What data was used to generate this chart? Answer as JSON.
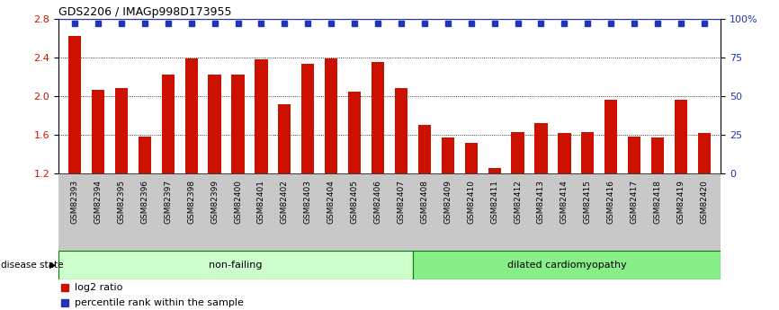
{
  "title": "GDS2206 / IMAGp998D173955",
  "samples": [
    "GSM82393",
    "GSM82394",
    "GSM82395",
    "GSM82396",
    "GSM82397",
    "GSM82398",
    "GSM82399",
    "GSM82400",
    "GSM82401",
    "GSM82402",
    "GSM82403",
    "GSM82404",
    "GSM82405",
    "GSM82406",
    "GSM82407",
    "GSM82408",
    "GSM82409",
    "GSM82410",
    "GSM82411",
    "GSM82412",
    "GSM82413",
    "GSM82414",
    "GSM82415",
    "GSM82416",
    "GSM82417",
    "GSM82418",
    "GSM82419",
    "GSM82420"
  ],
  "log2_values": [
    2.62,
    2.06,
    2.08,
    1.58,
    2.22,
    2.39,
    2.22,
    2.22,
    2.38,
    1.92,
    2.33,
    2.39,
    2.05,
    2.35,
    2.08,
    1.7,
    1.57,
    1.52,
    1.26,
    1.63,
    1.72,
    1.62,
    1.63,
    1.96,
    1.58,
    1.57,
    1.96,
    1.62
  ],
  "non_failing_count": 15,
  "bar_color": "#cc1100",
  "percentile_color": "#2233bb",
  "ylim_left": [
    1.2,
    2.8
  ],
  "ylim_right": [
    0,
    100
  ],
  "yticks_left": [
    1.2,
    1.6,
    2.0,
    2.4,
    2.8
  ],
  "ytick_labels_left": [
    "1.2",
    "1.6",
    "2.0",
    "2.4",
    "2.8"
  ],
  "yticks_right": [
    0,
    25,
    50,
    75,
    100
  ],
  "ytick_labels_right": [
    "0",
    "25",
    "50",
    "75",
    "100%"
  ],
  "nonfailing_label": "non-failing",
  "dilated_label": "dilated cardiomyopathy",
  "disease_state_label": "disease state",
  "legend_log2": "log2 ratio",
  "legend_percentile": "percentile rank within the sample",
  "nonfailing_color": "#ccffcc",
  "dilated_color": "#88ee88",
  "title_fontsize": 9,
  "tick_label_size": 6.5,
  "bar_width": 0.55
}
